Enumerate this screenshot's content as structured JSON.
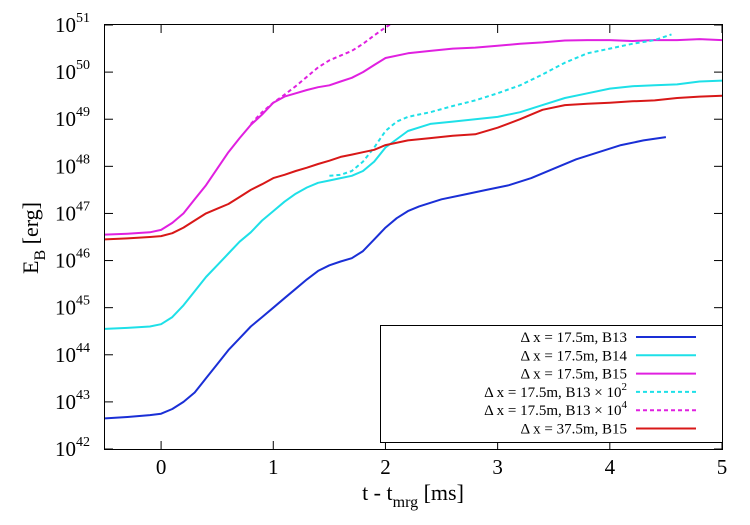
{
  "chart_data": {
    "type": "line",
    "xlabel": "t - t",
    "xlabel_sub": "mrg",
    "xlabel_unit": " [ms]",
    "ylabel": "E",
    "ylabel_sub": "B",
    "ylabel_unit": " [erg]",
    "xlim": [
      -0.5,
      5
    ],
    "ylim_log10": [
      42,
      51
    ],
    "y_scale": "log",
    "grid": false,
    "legend_position": "bottom-right",
    "x_ticks": [
      {
        "value": 0,
        "label": "0"
      },
      {
        "value": 1,
        "label": "1"
      },
      {
        "value": 2,
        "label": "2"
      },
      {
        "value": 3,
        "label": "3"
      },
      {
        "value": 4,
        "label": "4"
      },
      {
        "value": 5,
        "label": "5"
      }
    ],
    "y_ticks": [
      {
        "exp": 42,
        "base": "10",
        "sup": "42"
      },
      {
        "exp": 43,
        "base": "10",
        "sup": "43"
      },
      {
        "exp": 44,
        "base": "10",
        "sup": "44"
      },
      {
        "exp": 45,
        "base": "10",
        "sup": "45"
      },
      {
        "exp": 46,
        "base": "10",
        "sup": "46"
      },
      {
        "exp": 47,
        "base": "10",
        "sup": "47"
      },
      {
        "exp": 48,
        "base": "10",
        "sup": "48"
      },
      {
        "exp": 49,
        "base": "10",
        "sup": "49"
      },
      {
        "exp": 50,
        "base": "10",
        "sup": "50"
      },
      {
        "exp": 51,
        "base": "10",
        "sup": "51"
      }
    ],
    "series": [
      {
        "name": "Δ x = 17.5m, B13",
        "color": "#1a2fd6",
        "dash": "solid",
        "x": [
          -0.5,
          -0.3,
          -0.1,
          0.0,
          0.1,
          0.2,
          0.3,
          0.4,
          0.5,
          0.6,
          0.7,
          0.8,
          0.9,
          1.0,
          1.1,
          1.2,
          1.3,
          1.4,
          1.5,
          1.6,
          1.7,
          1.8,
          1.9,
          2.0,
          2.1,
          2.2,
          2.3,
          2.5,
          2.7,
          2.9,
          3.1,
          3.3,
          3.5,
          3.7,
          3.9,
          4.1,
          4.3,
          4.5
        ],
        "log10_y": [
          42.65,
          42.68,
          42.72,
          42.75,
          42.85,
          43.0,
          43.2,
          43.5,
          43.8,
          44.1,
          44.35,
          44.6,
          44.8,
          45.0,
          45.2,
          45.4,
          45.6,
          45.78,
          45.9,
          45.98,
          46.05,
          46.2,
          46.45,
          46.7,
          46.9,
          47.05,
          47.15,
          47.3,
          47.4,
          47.5,
          47.6,
          47.75,
          47.95,
          48.15,
          48.3,
          48.45,
          48.55,
          48.62
        ]
      },
      {
        "name": "Δ x = 17.5m, B14",
        "color": "#1ee0e8",
        "dash": "solid",
        "x": [
          -0.5,
          -0.3,
          -0.1,
          0.0,
          0.1,
          0.2,
          0.3,
          0.4,
          0.5,
          0.6,
          0.7,
          0.8,
          0.9,
          1.0,
          1.1,
          1.2,
          1.3,
          1.4,
          1.5,
          1.6,
          1.7,
          1.8,
          1.9,
          2.0,
          2.2,
          2.4,
          2.6,
          2.8,
          3.0,
          3.2,
          3.4,
          3.6,
          3.8,
          4.0,
          4.2,
          4.4,
          4.6,
          4.8,
          5.0
        ],
        "log10_y": [
          44.55,
          44.57,
          44.6,
          44.65,
          44.8,
          45.05,
          45.35,
          45.65,
          45.9,
          46.15,
          46.4,
          46.6,
          46.85,
          47.05,
          47.25,
          47.42,
          47.55,
          47.65,
          47.7,
          47.75,
          47.8,
          47.9,
          48.1,
          48.4,
          48.75,
          48.9,
          48.95,
          49.0,
          49.05,
          49.15,
          49.3,
          49.45,
          49.55,
          49.65,
          49.7,
          49.72,
          49.74,
          49.8,
          49.82
        ]
      },
      {
        "name": "Δ x = 17.5m, B15",
        "color": "#e020e0",
        "dash": "solid",
        "x": [
          -0.5,
          -0.3,
          -0.1,
          0.0,
          0.1,
          0.2,
          0.3,
          0.4,
          0.5,
          0.6,
          0.7,
          0.8,
          0.9,
          1.0,
          1.1,
          1.2,
          1.3,
          1.4,
          1.5,
          1.6,
          1.7,
          1.8,
          1.9,
          2.0,
          2.2,
          2.4,
          2.6,
          2.8,
          3.0,
          3.2,
          3.4,
          3.6,
          3.8,
          4.0,
          4.2,
          4.4,
          4.6,
          4.8,
          5.0
        ],
        "log10_y": [
          46.55,
          46.57,
          46.6,
          46.65,
          46.8,
          47.0,
          47.3,
          47.6,
          47.95,
          48.3,
          48.6,
          48.88,
          49.1,
          49.35,
          49.48,
          49.55,
          49.62,
          49.68,
          49.72,
          49.8,
          49.88,
          50.0,
          50.15,
          50.3,
          50.4,
          50.45,
          50.5,
          50.52,
          50.56,
          50.6,
          50.63,
          50.67,
          50.68,
          50.68,
          50.66,
          50.68,
          50.68,
          50.7,
          50.68
        ]
      },
      {
        "name": "Δ x = 17.5m, B13 × 10",
        "name_sup": "2",
        "color": "#1ee0e8",
        "dash": "dashed",
        "x": [
          1.5,
          1.6,
          1.7,
          1.8,
          1.9,
          2.0,
          2.1,
          2.2,
          2.3,
          2.4,
          2.6,
          2.8,
          3.0,
          3.2,
          3.4,
          3.6,
          3.8,
          4.0,
          4.2,
          4.4,
          4.55
        ],
        "log10_y": [
          47.8,
          47.82,
          47.9,
          48.1,
          48.4,
          48.75,
          48.95,
          49.05,
          49.1,
          49.15,
          49.28,
          49.4,
          49.55,
          49.72,
          49.95,
          50.2,
          50.4,
          50.5,
          50.6,
          50.68,
          50.8
        ]
      },
      {
        "name": "Δ x = 17.5m, B13  × 10",
        "name_sup": "4",
        "color": "#e020e0",
        "dash": "dashed",
        "x": [
          0.8,
          0.9,
          1.0,
          1.1,
          1.2,
          1.3,
          1.4,
          1.5,
          1.6,
          1.7,
          1.8,
          1.9,
          2.0,
          2.1,
          2.2,
          2.25
        ],
        "log10_y": [
          48.9,
          49.15,
          49.35,
          49.52,
          49.7,
          49.9,
          50.1,
          50.25,
          50.35,
          50.45,
          50.6,
          50.78,
          50.95,
          51.1,
          51.25,
          51.35
        ]
      },
      {
        "name": "Δ x = 37.5m, B15",
        "color": "#d81818",
        "dash": "solid",
        "x": [
          -0.5,
          -0.3,
          -0.1,
          0.0,
          0.1,
          0.2,
          0.3,
          0.4,
          0.5,
          0.6,
          0.7,
          0.8,
          0.9,
          1.0,
          1.1,
          1.2,
          1.3,
          1.4,
          1.5,
          1.6,
          1.7,
          1.8,
          1.9,
          2.0,
          2.2,
          2.4,
          2.6,
          2.8,
          3.0,
          3.2,
          3.4,
          3.6,
          3.8,
          4.0,
          4.2,
          4.4,
          4.6,
          4.8,
          5.0
        ],
        "log10_y": [
          46.45,
          46.47,
          46.5,
          46.52,
          46.58,
          46.7,
          46.85,
          47.0,
          47.1,
          47.2,
          47.35,
          47.5,
          47.62,
          47.75,
          47.82,
          47.9,
          47.97,
          48.05,
          48.12,
          48.2,
          48.25,
          48.3,
          48.35,
          48.45,
          48.55,
          48.6,
          48.65,
          48.68,
          48.82,
          49.0,
          49.2,
          49.3,
          49.33,
          49.35,
          49.38,
          49.4,
          49.45,
          49.48,
          49.5
        ]
      }
    ]
  }
}
